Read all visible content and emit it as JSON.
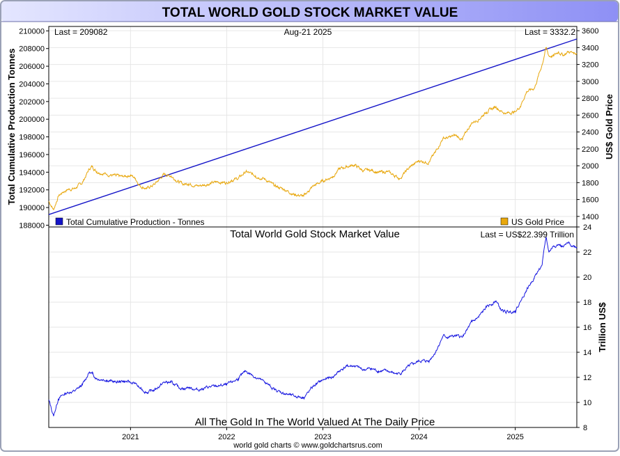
{
  "banner_title": "TOTAL WORLD GOLD STOCK MARKET VALUE",
  "footer": "world gold charts © www.goldchartsrus.com",
  "colors": {
    "frame": "#9aa1b6",
    "banner_light": "#e4e6ff",
    "banner_dark": "#8e90f5",
    "tonnes_line": "#1414c8",
    "price_line": "#e8a70c",
    "value_line": "#1818e0",
    "grid": "#e6e6e6"
  },
  "chart_data": [
    {
      "type": "line",
      "top_left_label": "Last = 209082",
      "date_label": "Aug-21  2025",
      "top_right_label": "Last = 3332.2",
      "ylabel_left": "Total Cumulative Production Tonnes",
      "ylabel_right": "US$ Gold Price",
      "ylim_left": [
        187800,
        210500
      ],
      "yticks_left": [
        "188000",
        "190000",
        "192000",
        "194000",
        "196000",
        "198000",
        "200000",
        "202000",
        "204000",
        "206000",
        "208000",
        "210000"
      ],
      "ylim_right": [
        1275,
        3650
      ],
      "yticks_right": [
        "1400",
        "1600",
        "1800",
        "2000",
        "2200",
        "2400",
        "2600",
        "2800",
        "3000",
        "3200",
        "3400",
        "3600"
      ],
      "legend": [
        {
          "label": "Total Cumulative Production - Tonnes",
          "color": "#1414c8",
          "position": "bottom-left"
        },
        {
          "label": "US Gold Price",
          "color": "#e8a70c",
          "position": "bottom-right"
        }
      ],
      "series": [
        {
          "name": "Total Cumulative Production - Tonnes",
          "axis": "left",
          "x": [
            2020.15,
            2025.64
          ],
          "values": [
            189200,
            209082
          ]
        },
        {
          "name": "US Gold Price",
          "axis": "right",
          "x": [
            2020.15,
            2020.2,
            2020.25,
            2020.3,
            2020.35,
            2020.42,
            2020.5,
            2020.57,
            2020.6,
            2020.65,
            2020.75,
            2020.85,
            2020.92,
            2021.0,
            2021.05,
            2021.1,
            2021.17,
            2021.25,
            2021.35,
            2021.42,
            2021.5,
            2021.55,
            2021.6,
            2021.7,
            2021.8,
            2021.9,
            2022.0,
            2022.05,
            2022.12,
            2022.2,
            2022.3,
            2022.4,
            2022.5,
            2022.6,
            2022.7,
            2022.8,
            2022.85,
            2022.9,
            2023.0,
            2023.1,
            2023.17,
            2023.25,
            2023.33,
            2023.42,
            2023.5,
            2023.58,
            2023.67,
            2023.75,
            2023.8,
            2023.9,
            2024.0,
            2024.1,
            2024.17,
            2024.25,
            2024.3,
            2024.38,
            2024.45,
            2024.5,
            2024.55,
            2024.62,
            2024.7,
            2024.8,
            2024.85,
            2024.9,
            2025.0,
            2025.05,
            2025.12,
            2025.2,
            2025.28,
            2025.32,
            2025.35,
            2025.4,
            2025.45,
            2025.5,
            2025.55,
            2025.6,
            2025.64
          ],
          "values": [
            1580,
            1480,
            1640,
            1690,
            1720,
            1730,
            1800,
            1960,
            1990,
            1930,
            1900,
            1880,
            1870,
            1890,
            1850,
            1760,
            1730,
            1780,
            1900,
            1880,
            1810,
            1780,
            1790,
            1760,
            1780,
            1810,
            1800,
            1830,
            1850,
            1930,
            1880,
            1840,
            1760,
            1720,
            1660,
            1640,
            1700,
            1760,
            1820,
            1870,
            1960,
            1990,
            2010,
            1940,
            1950,
            1920,
            1930,
            1880,
            1850,
            1980,
            2060,
            2040,
            2160,
            2330,
            2330,
            2360,
            2310,
            2420,
            2510,
            2550,
            2640,
            2700,
            2650,
            2620,
            2640,
            2700,
            2880,
            2920,
            3200,
            3400,
            3300,
            3300,
            3350,
            3310,
            3350,
            3340,
            3332
          ]
        }
      ]
    },
    {
      "type": "line",
      "title": "Total World Gold Stock Market Value",
      "top_right_label": "Last = US$22.399 Trillion",
      "annotation": "All The Gold In The World Valued At The Daily Price",
      "ylabel_right": "Trillion US$",
      "ylim": [
        8,
        24
      ],
      "yticks": [
        "8",
        "10",
        "12",
        "14",
        "16",
        "18",
        "20",
        "22",
        "24"
      ],
      "xticks": [
        "2021",
        "2022",
        "2023",
        "2024",
        "2025"
      ],
      "xlim": [
        2020.15,
        2025.64
      ],
      "series": [
        {
          "name": "Total World Gold Stock Market Value",
          "x": [
            2020.15,
            2020.2,
            2020.25,
            2020.3,
            2020.35,
            2020.42,
            2020.5,
            2020.57,
            2020.6,
            2020.65,
            2020.75,
            2020.85,
            2020.92,
            2021.0,
            2021.05,
            2021.1,
            2021.17,
            2021.25,
            2021.35,
            2021.42,
            2021.5,
            2021.55,
            2021.6,
            2021.7,
            2021.8,
            2021.9,
            2022.0,
            2022.05,
            2022.12,
            2022.2,
            2022.3,
            2022.4,
            2022.5,
            2022.6,
            2022.7,
            2022.8,
            2022.85,
            2022.9,
            2023.0,
            2023.1,
            2023.17,
            2023.25,
            2023.33,
            2023.42,
            2023.5,
            2023.58,
            2023.67,
            2023.75,
            2023.8,
            2023.9,
            2024.0,
            2024.1,
            2024.17,
            2024.25,
            2024.3,
            2024.38,
            2024.45,
            2024.5,
            2024.55,
            2024.62,
            2024.7,
            2024.8,
            2024.85,
            2024.9,
            2025.0,
            2025.05,
            2025.12,
            2025.2,
            2025.28,
            2025.32,
            2025.35,
            2025.4,
            2025.45,
            2025.5,
            2025.55,
            2025.6,
            2025.64
          ],
          "values": [
            10.2,
            8.9,
            10.3,
            10.6,
            10.8,
            10.9,
            11.4,
            12.4,
            12.3,
            11.9,
            11.8,
            11.6,
            11.7,
            11.6,
            11.5,
            11.1,
            10.8,
            11.0,
            11.6,
            11.6,
            11.2,
            11.1,
            11.2,
            11.0,
            11.2,
            11.3,
            11.4,
            11.6,
            11.9,
            12.5,
            12.0,
            11.6,
            11.0,
            10.7,
            10.5,
            10.4,
            10.8,
            11.3,
            11.8,
            12.0,
            12.5,
            12.9,
            12.9,
            12.6,
            12.7,
            12.5,
            12.5,
            12.3,
            12.3,
            12.9,
            13.3,
            13.3,
            14.0,
            15.3,
            15.2,
            15.3,
            15.2,
            15.8,
            16.4,
            16.8,
            17.6,
            18.1,
            17.4,
            17.2,
            17.3,
            18.0,
            19.0,
            20.0,
            21.0,
            23.2,
            22.0,
            22.5,
            22.6,
            22.4,
            22.7,
            22.5,
            22.4
          ]
        }
      ]
    }
  ]
}
